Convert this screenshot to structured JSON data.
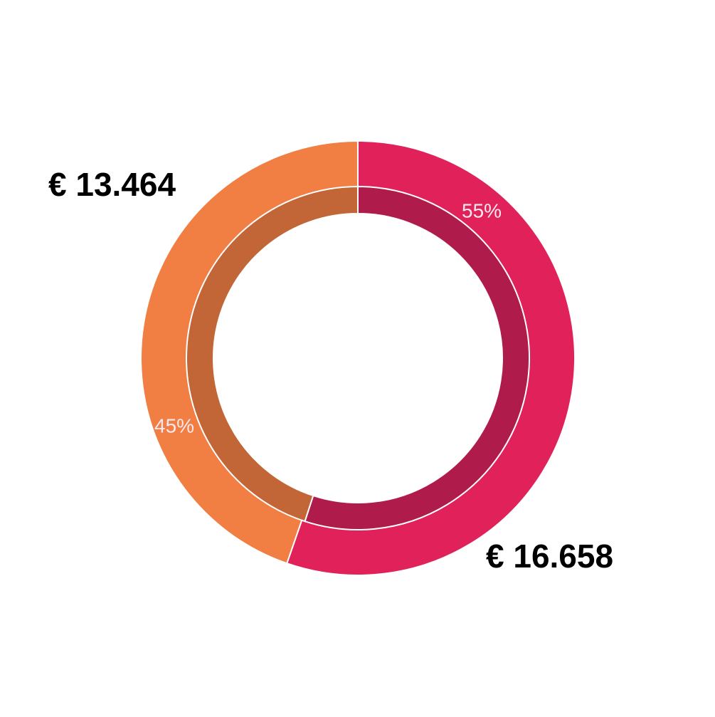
{
  "chart_data": {
    "type": "donut",
    "values": [
      16658,
      13464
    ],
    "value_labels": [
      "€ 16.658",
      "€ 13.464"
    ],
    "shares": [
      55,
      45
    ],
    "share_labels": [
      "55%",
      "45%"
    ],
    "colors": [
      "#e0215a",
      "#f17e42"
    ],
    "inner_colors": [
      "#af1b4a",
      "#c26537"
    ]
  }
}
